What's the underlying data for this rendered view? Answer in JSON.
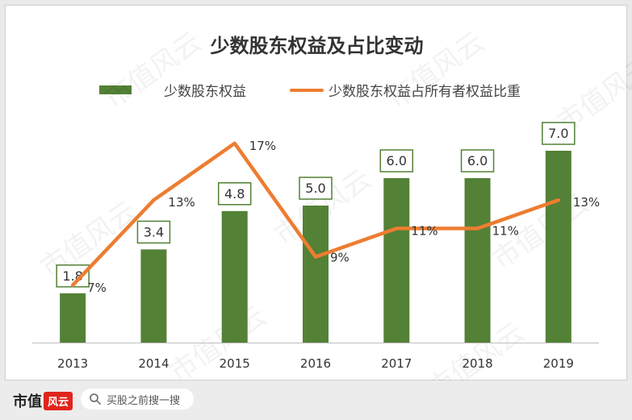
{
  "chart_data": {
    "type": "bar",
    "title": "少数股东权益及占比变动",
    "categories": [
      "2013",
      "2014",
      "2015",
      "2016",
      "2017",
      "2018",
      "2019"
    ],
    "series": [
      {
        "name": "少数股东权益",
        "type": "bar",
        "values": [
          1.8,
          3.4,
          4.8,
          5.0,
          6.0,
          6.0,
          7.0
        ],
        "labels": [
          "1.8",
          "3.4",
          "4.8",
          "5.0",
          "6.0",
          "6.0",
          "7.0"
        ],
        "color": "#538135"
      },
      {
        "name": "少数股东权益占所有者权益比重",
        "type": "line",
        "values": [
          7,
          13,
          17,
          9,
          11,
          11,
          13
        ],
        "labels": [
          "7%",
          "13%",
          "17%",
          "9%",
          "11%",
          "11%",
          "13%"
        ],
        "color": "#ed7d31"
      }
    ],
    "legend_position": "top-center",
    "grid": false
  },
  "watermark": "市值风云",
  "footer": {
    "brand": "市值",
    "brand_badge": "风云",
    "search_placeholder": "买股之前搜一搜",
    "search_icon": "search-icon"
  }
}
